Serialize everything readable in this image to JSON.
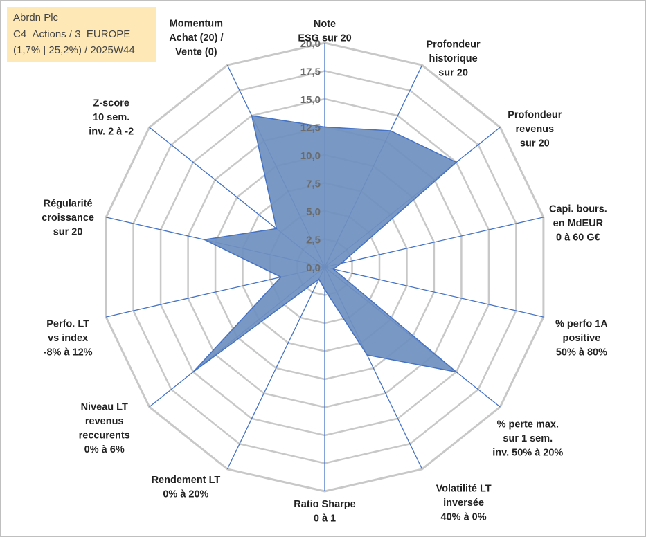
{
  "header": {
    "line1": "Abrdn Plc",
    "line2": "C4_Actions / 3_EUROPE",
    "line3": "(1,7% | 25,2%) / 2025W44"
  },
  "colors": {
    "grid": "#c8c8c8",
    "spoke": "#4472c4",
    "fill": "#6f8fbf",
    "header_bg": "#fde8b6"
  },
  "chart_data": {
    "type": "radar",
    "title": "Abrdn Plc",
    "rmin": 0,
    "rmax": 20,
    "tick_step": 2.5,
    "tick_labels": [
      "0,0",
      "2,5",
      "5,0",
      "7,5",
      "10,0",
      "12,5",
      "15,0",
      "17,5",
      "20,0"
    ],
    "axes": [
      {
        "lines": [
          "Note",
          "ESG sur 20"
        ],
        "value": 12.5
      },
      {
        "lines": [
          "Profondeur",
          "historique",
          "sur 20"
        ],
        "value": 13.5
      },
      {
        "lines": [
          "Profondeur",
          "revenus",
          "sur 20"
        ],
        "value": 15.0
      },
      {
        "lines": [
          "Capi. bours.",
          "en MdEUR",
          "0 à 60 G€"
        ],
        "value": 1.5
      },
      {
        "lines": [
          "% perfo 1A",
          "positive",
          "50% à 80%"
        ],
        "value": 0.8
      },
      {
        "lines": [
          "% perte max.",
          "sur 1 sem.",
          "inv. 50% à 20%"
        ],
        "value": 15.0
      },
      {
        "lines": [
          "Volatilité LT",
          "inversée",
          "40% à 0%"
        ],
        "value": 8.7
      },
      {
        "lines": [
          "Ratio Sharpe",
          "0 à 1"
        ],
        "value": 2.0
      },
      {
        "lines": [
          "Rendement LT",
          "0% à 20%"
        ],
        "value": 1.2
      },
      {
        "lines": [
          "Niveau LT",
          "revenus",
          "reccurents",
          "0% à 6%"
        ],
        "value": 15.0
      },
      {
        "lines": [
          "Perfo. LT",
          "vs index",
          "-8% à 12%"
        ],
        "value": 4.0
      },
      {
        "lines": [
          "Régularité",
          "croissance",
          "sur 20"
        ],
        "value": 11.0
      },
      {
        "lines": [
          "Z-score",
          "10 sem.",
          "inv. 2 à -2"
        ],
        "value": 5.5
      },
      {
        "lines": [
          "Momentum",
          "Achat (20) /",
          "Vente (0)"
        ],
        "value": 15.0
      }
    ]
  }
}
